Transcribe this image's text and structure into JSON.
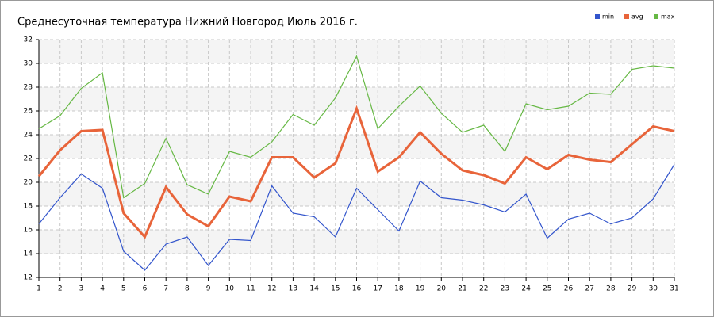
{
  "chart_data": {
    "type": "line",
    "title": "Среднесуточная температура Нижний Новгород  Июль 2016 г.",
    "x": [
      1,
      2,
      3,
      4,
      5,
      6,
      7,
      8,
      9,
      10,
      11,
      12,
      13,
      14,
      15,
      16,
      17,
      18,
      19,
      20,
      21,
      22,
      23,
      24,
      25,
      26,
      27,
      28,
      29,
      30,
      31
    ],
    "xlim": [
      1,
      31
    ],
    "xticks": [
      1,
      2,
      3,
      4,
      5,
      6,
      7,
      8,
      9,
      10,
      11,
      12,
      13,
      14,
      15,
      16,
      17,
      18,
      19,
      20,
      21,
      22,
      23,
      24,
      25,
      26,
      27,
      28,
      29,
      30,
      31
    ],
    "ylim": [
      12,
      32
    ],
    "yticks": [
      12,
      14,
      16,
      18,
      20,
      22,
      24,
      26,
      28,
      30,
      32
    ],
    "grid": true,
    "legend": "top-right",
    "series": [
      {
        "name": "min",
        "color": "#3355cc",
        "values": [
          16.5,
          18.7,
          20.7,
          19.5,
          14.2,
          12.6,
          14.8,
          15.4,
          13.0,
          15.2,
          15.1,
          19.7,
          17.4,
          17.1,
          15.4,
          19.5,
          17.7,
          15.9,
          20.1,
          18.7,
          18.5,
          18.1,
          17.5,
          19.0,
          15.3,
          16.9,
          17.4,
          16.5,
          17.0,
          18.6,
          21.5
        ]
      },
      {
        "name": "avg",
        "color": "#e8643a",
        "values": [
          20.5,
          22.7,
          24.3,
          24.4,
          17.4,
          15.4,
          19.6,
          17.3,
          16.3,
          18.8,
          18.4,
          22.1,
          22.1,
          20.4,
          21.6,
          26.2,
          20.9,
          22.1,
          24.2,
          22.4,
          21.0,
          20.6,
          19.9,
          22.1,
          21.1,
          22.3,
          21.9,
          21.7,
          23.2,
          24.7,
          24.3
        ]
      },
      {
        "name": "max",
        "color": "#66b844",
        "values": [
          24.5,
          25.6,
          27.9,
          29.2,
          18.7,
          19.9,
          23.7,
          19.8,
          19.0,
          22.6,
          22.1,
          23.4,
          25.7,
          24.8,
          27.1,
          30.6,
          24.5,
          26.4,
          28.1,
          25.8,
          24.2,
          24.8,
          22.6,
          26.6,
          26.1,
          26.4,
          27.5,
          27.4,
          29.5,
          29.8,
          29.6
        ]
      }
    ]
  }
}
